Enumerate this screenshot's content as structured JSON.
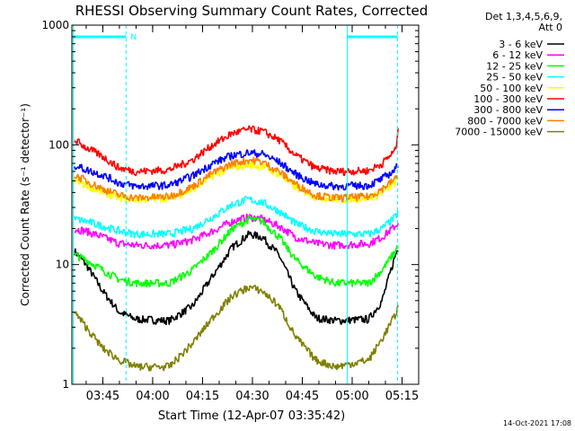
{
  "chart_data": {
    "type": "line",
    "title": "RHESSI Observing Summary Count Rates, Corrected",
    "xlabel": "Start Time (12-Apr-07 03:35:42)",
    "ylabel": "Corrected Count Rate (s⁻¹ detector⁻¹)",
    "yscale": "log",
    "ylim": [
      1,
      1000
    ],
    "yticks": [
      {
        "value": 1,
        "label": "1"
      },
      {
        "value": 10,
        "label": "10"
      },
      {
        "value": 100,
        "label": "100"
      },
      {
        "value": 1000,
        "label": "1000"
      }
    ],
    "xlim": [
      "03:35:42",
      "05:20:00"
    ],
    "xticks": [
      "03:45",
      "04:00",
      "04:15",
      "04:30",
      "04:45",
      "05:00",
      "05:15"
    ],
    "grid": false,
    "legend_placement": "top-right",
    "legend_header": [
      "Det 1,3,4,5,6,9,",
      "Att 0"
    ],
    "footer_timestamp": "14-Oct-2021 17:08",
    "flag_marker": {
      "label": "N",
      "color": "#00ffff"
    },
    "night_intervals": [
      {
        "start": "03:35:42",
        "end": "03:52:00"
      },
      {
        "start": "04:58:30",
        "end": "05:13:40"
      }
    ],
    "interval_markers": [
      "03:36:10",
      "03:52:00",
      "04:58:30",
      "05:13:40"
    ],
    "series": [
      {
        "name": "3 - 6 keV",
        "color": "#000000",
        "points": [
          [
            "03:36:30",
            13
          ],
          [
            "03:40:00",
            10
          ],
          [
            "03:45:00",
            6
          ],
          [
            "03:50:00",
            4
          ],
          [
            "03:55:00",
            3.5
          ],
          [
            "04:05:00",
            3.4
          ],
          [
            "04:12:00",
            4.5
          ],
          [
            "04:18:00",
            8
          ],
          [
            "04:24:00",
            14
          ],
          [
            "04:29:00",
            18
          ],
          [
            "04:33:00",
            17
          ],
          [
            "04:38:00",
            12
          ],
          [
            "04:43:00",
            6
          ],
          [
            "04:49:00",
            3.6
          ],
          [
            "04:55:00",
            3.4
          ],
          [
            "05:05:00",
            3.5
          ],
          [
            "05:09:00",
            5
          ],
          [
            "05:13:00",
            12
          ],
          [
            "05:14:00",
            14
          ]
        ]
      },
      {
        "name": "6 - 12 keV",
        "color": "#ff00ff",
        "points": [
          [
            "03:36:30",
            20
          ],
          [
            "03:40:00",
            19
          ],
          [
            "03:45:00",
            17
          ],
          [
            "03:50:00",
            15
          ],
          [
            "03:55:00",
            14.5
          ],
          [
            "04:05:00",
            14.5
          ],
          [
            "04:12:00",
            16
          ],
          [
            "04:18:00",
            19
          ],
          [
            "04:24:00",
            23
          ],
          [
            "04:29:00",
            25
          ],
          [
            "04:33:00",
            24
          ],
          [
            "04:38:00",
            21
          ],
          [
            "04:43:00",
            17
          ],
          [
            "04:49:00",
            15
          ],
          [
            "04:55:00",
            14.5
          ],
          [
            "05:05:00",
            15
          ],
          [
            "05:09:00",
            17
          ],
          [
            "05:13:00",
            21
          ],
          [
            "05:14:00",
            23
          ]
        ]
      },
      {
        "name": "12 - 25 keV",
        "color": "#00ff00",
        "points": [
          [
            "03:36:30",
            12
          ],
          [
            "03:40:00",
            11
          ],
          [
            "03:45:00",
            9
          ],
          [
            "03:50:00",
            7.5
          ],
          [
            "03:55:00",
            7
          ],
          [
            "04:05:00",
            7
          ],
          [
            "04:12:00",
            9
          ],
          [
            "04:18:00",
            13
          ],
          [
            "04:24:00",
            20
          ],
          [
            "04:29:00",
            24
          ],
          [
            "04:33:00",
            23
          ],
          [
            "04:38:00",
            17
          ],
          [
            "04:43:00",
            11
          ],
          [
            "04:49:00",
            8
          ],
          [
            "04:55:00",
            7
          ],
          [
            "05:05:00",
            7
          ],
          [
            "05:09:00",
            9
          ],
          [
            "05:13:00",
            13
          ],
          [
            "05:14:00",
            15
          ]
        ]
      },
      {
        "name": "25 - 50 keV",
        "color": "#00ffff",
        "points": [
          [
            "03:36:30",
            24
          ],
          [
            "03:40:00",
            23
          ],
          [
            "03:45:00",
            21
          ],
          [
            "03:50:00",
            19
          ],
          [
            "03:55:00",
            18
          ],
          [
            "04:05:00",
            18
          ],
          [
            "04:12:00",
            20
          ],
          [
            "04:18:00",
            25
          ],
          [
            "04:24:00",
            32
          ],
          [
            "04:29:00",
            35
          ],
          [
            "04:33:00",
            33
          ],
          [
            "04:38:00",
            28
          ],
          [
            "04:43:00",
            22
          ],
          [
            "04:49:00",
            19
          ],
          [
            "04:55:00",
            18
          ],
          [
            "05:05:00",
            18
          ],
          [
            "05:09:00",
            20
          ],
          [
            "05:13:00",
            25
          ],
          [
            "05:14:00",
            28
          ]
        ]
      },
      {
        "name": "50 - 100 keV",
        "color": "#ffff00",
        "points": [
          [
            "03:36:30",
            50
          ],
          [
            "03:40:00",
            46
          ],
          [
            "03:45:00",
            40
          ],
          [
            "03:50:00",
            36
          ],
          [
            "03:55:00",
            35
          ],
          [
            "04:05:00",
            36
          ],
          [
            "04:12:00",
            42
          ],
          [
            "04:18:00",
            55
          ],
          [
            "04:24:00",
            65
          ],
          [
            "04:29:00",
            68
          ],
          [
            "04:33:00",
            66
          ],
          [
            "04:38:00",
            57
          ],
          [
            "04:43:00",
            44
          ],
          [
            "04:49:00",
            37
          ],
          [
            "04:55:00",
            35
          ],
          [
            "05:05:00",
            36
          ],
          [
            "05:09:00",
            40
          ],
          [
            "05:13:00",
            48
          ],
          [
            "05:14:00",
            52
          ]
        ]
      },
      {
        "name": "100 - 300 keV",
        "color": "#ff0000",
        "points": [
          [
            "03:36:30",
            110
          ],
          [
            "03:40:00",
            95
          ],
          [
            "03:45:00",
            80
          ],
          [
            "03:50:00",
            64
          ],
          [
            "03:55:00",
            60
          ],
          [
            "04:05:00",
            62
          ],
          [
            "04:12:00",
            75
          ],
          [
            "04:18:00",
            100
          ],
          [
            "04:24:00",
            125
          ],
          [
            "04:29:00",
            135
          ],
          [
            "04:33:00",
            130
          ],
          [
            "04:38:00",
            110
          ],
          [
            "04:43:00",
            82
          ],
          [
            "04:49:00",
            64
          ],
          [
            "04:55:00",
            60
          ],
          [
            "05:05:00",
            61
          ],
          [
            "05:09:00",
            70
          ],
          [
            "05:13:00",
            90
          ],
          [
            "05:14:00",
            140
          ]
        ]
      },
      {
        "name": "300 - 800 keV",
        "color": "#0000ff",
        "points": [
          [
            "03:36:30",
            68
          ],
          [
            "03:40:00",
            62
          ],
          [
            "03:45:00",
            56
          ],
          [
            "03:50:00",
            48
          ],
          [
            "03:55:00",
            45
          ],
          [
            "04:05:00",
            46
          ],
          [
            "04:12:00",
            55
          ],
          [
            "04:18:00",
            70
          ],
          [
            "04:24:00",
            82
          ],
          [
            "04:29:00",
            86
          ],
          [
            "04:33:00",
            84
          ],
          [
            "04:38:00",
            72
          ],
          [
            "04:43:00",
            57
          ],
          [
            "04:49:00",
            47
          ],
          [
            "04:55:00",
            45
          ],
          [
            "05:05:00",
            46
          ],
          [
            "05:09:00",
            52
          ],
          [
            "05:13:00",
            62
          ],
          [
            "05:14:00",
            72
          ]
        ]
      },
      {
        "name": "800 - 7000 keV",
        "color": "#ff8000",
        "points": [
          [
            "03:36:30",
            56
          ],
          [
            "03:40:00",
            50
          ],
          [
            "03:45:00",
            43
          ],
          [
            "03:50:00",
            38
          ],
          [
            "03:55:00",
            36
          ],
          [
            "04:05:00",
            37
          ],
          [
            "04:12:00",
            45
          ],
          [
            "04:18:00",
            58
          ],
          [
            "04:24:00",
            70
          ],
          [
            "04:29:00",
            75
          ],
          [
            "04:33:00",
            72
          ],
          [
            "04:38:00",
            60
          ],
          [
            "04:43:00",
            47
          ],
          [
            "04:49:00",
            38
          ],
          [
            "04:55:00",
            36
          ],
          [
            "05:05:00",
            37
          ],
          [
            "05:09:00",
            43
          ],
          [
            "05:13:00",
            52
          ],
          [
            "05:14:00",
            58
          ]
        ]
      },
      {
        "name": "7000 - 15000 keV",
        "color": "#808000",
        "points": [
          [
            "03:36:30",
            4
          ],
          [
            "03:40:00",
            3
          ],
          [
            "03:45:00",
            2
          ],
          [
            "03:50:00",
            1.6
          ],
          [
            "03:55:00",
            1.4
          ],
          [
            "04:05:00",
            1.4
          ],
          [
            "04:12:00",
            2.2
          ],
          [
            "04:18:00",
            3.6
          ],
          [
            "04:24:00",
            5.5
          ],
          [
            "04:29:00",
            6.5
          ],
          [
            "04:33:00",
            6
          ],
          [
            "04:38:00",
            4.5
          ],
          [
            "04:43:00",
            2.5
          ],
          [
            "04:49:00",
            1.6
          ],
          [
            "04:55:00",
            1.4
          ],
          [
            "05:05:00",
            1.6
          ],
          [
            "05:09:00",
            2.4
          ],
          [
            "05:13:00",
            3.8
          ],
          [
            "05:14:00",
            4.6
          ]
        ]
      }
    ]
  }
}
